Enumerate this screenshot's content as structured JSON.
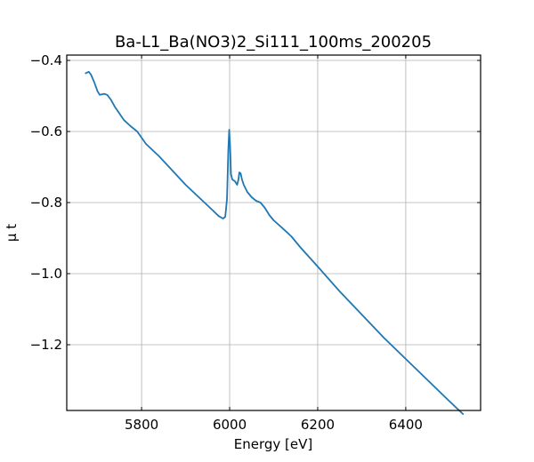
{
  "chart_data": {
    "type": "line",
    "title": "Ba-L1_Ba(NO3)2_Si111_100ms_200205",
    "xlabel": "Energy [eV]",
    "ylabel": "μ t",
    "xlim": [
      5630,
      6570
    ],
    "ylim": [
      -1.385,
      -0.385
    ],
    "xticks": [
      5800,
      6000,
      6200,
      6400
    ],
    "xtick_labels": [
      "5800",
      "6000",
      "6200",
      "6400"
    ],
    "yticks": [
      -0.4,
      -0.6,
      -0.8,
      -1.0,
      -1.2
    ],
    "ytick_labels": [
      "−0.4",
      "−0.6",
      "−0.8",
      "−1.0",
      "−1.2"
    ],
    "grid": true,
    "series": [
      {
        "color": "#1f77b4",
        "x": [
          5673,
          5680,
          5685,
          5692,
          5700,
          5705,
          5715,
          5722,
          5730,
          5740,
          5750,
          5760,
          5775,
          5790,
          5810,
          5840,
          5870,
          5900,
          5930,
          5960,
          5975,
          5985,
          5990,
          5994,
          5997,
          5999,
          6001,
          6003,
          6006,
          6012,
          6017,
          6020,
          6022,
          6025,
          6028,
          6032,
          6040,
          6050,
          6060,
          6070,
          6080,
          6090,
          6100,
          6120,
          6140,
          6160,
          6200,
          6250,
          6300,
          6350,
          6400,
          6450,
          6500,
          6530
        ],
        "y": [
          -0.436,
          -0.432,
          -0.44,
          -0.46,
          -0.487,
          -0.497,
          -0.494,
          -0.497,
          -0.51,
          -0.532,
          -0.55,
          -0.568,
          -0.585,
          -0.6,
          -0.635,
          -0.67,
          -0.71,
          -0.75,
          -0.785,
          -0.82,
          -0.838,
          -0.845,
          -0.84,
          -0.79,
          -0.65,
          -0.595,
          -0.64,
          -0.72,
          -0.735,
          -0.74,
          -0.75,
          -0.735,
          -0.715,
          -0.718,
          -0.735,
          -0.75,
          -0.77,
          -0.785,
          -0.795,
          -0.8,
          -0.815,
          -0.835,
          -0.85,
          -0.872,
          -0.895,
          -0.925,
          -0.98,
          -1.05,
          -1.115,
          -1.18,
          -1.24,
          -1.3,
          -1.36,
          -1.395
        ]
      }
    ]
  }
}
